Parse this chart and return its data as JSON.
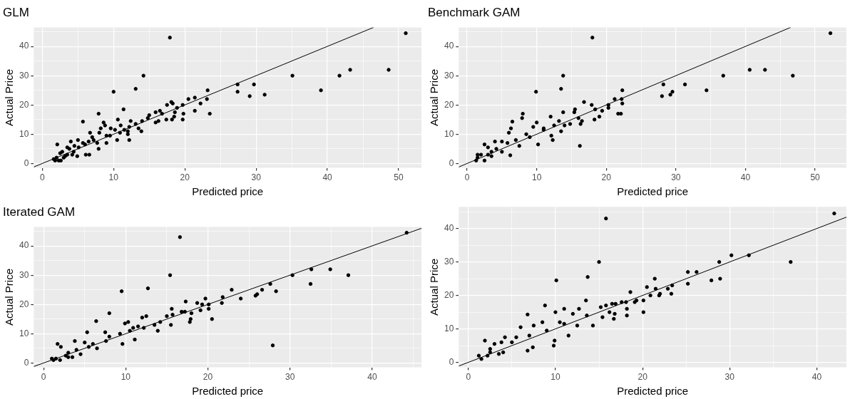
{
  "chart_data": [
    {
      "type": "scatter",
      "title": "GLM",
      "xlabel": "Predicted price",
      "ylabel": "Actual Price",
      "xlim": [
        -1.2,
        53.2
      ],
      "ylim": [
        -1.5,
        46.5
      ],
      "xticks": [
        0,
        {
          "value": 5,
          "label": null
        },
        10,
        {
          "value": 15,
          "label": null
        },
        20,
        {
          "value": 25,
          "label": null
        },
        30,
        {
          "value": 35,
          "label": null
        },
        40,
        {
          "value": 45,
          "label": null
        },
        50
      ],
      "yticks": [
        0,
        {
          "value": 5,
          "label": null
        },
        10,
        {
          "value": 15,
          "label": null
        },
        20,
        {
          "value": 25,
          "label": null
        },
        30,
        {
          "value": 35,
          "label": null
        },
        40,
        {
          "value": 45,
          "label": null
        }
      ],
      "grid": true,
      "marker": "circle",
      "series": [
        {
          "color": "#000000",
          "x": [
            17.9,
            51,
            14.2,
            10,
            13.1,
            35.1,
            39.1,
            41.7,
            43.2,
            48.6,
            27.4,
            27.4,
            29.7,
            29.1,
            31.2,
            23.2,
            23.1,
            22.2,
            21.4,
            20.5,
            21.4,
            23.5,
            19.7,
            19.7,
            19.8,
            18.1,
            18.3,
            17.5,
            18.6,
            18.9,
            17.4,
            18.2,
            18.5,
            16.5,
            16.8,
            15.9,
            15.9,
            16.3,
            15,
            14.8,
            14,
            13.9,
            13.1,
            12.4,
            12.2,
            11.4,
            11,
            10.6,
            10.9,
            10.5,
            12,
            12.2,
            9.6,
            9.5,
            9,
            8.6,
            8.8,
            7.9,
            8,
            8.2,
            7.7,
            7.9,
            7,
            6.7,
            6.5,
            6.6,
            6.1,
            5.7,
            5.7,
            5,
            5.1,
            4.9,
            4.5,
            4,
            4.4,
            3.8,
            3.5,
            3.2,
            2.8,
            2.5,
            2.1,
            2.3,
            2,
            1.6,
            1.8,
            2.6,
            3,
            4.2,
            3.5,
            6,
            7.2,
            9,
            10.2,
            11.5,
            13.5,
            12
          ],
          "values": [
            43,
            44.5,
            30,
            24.5,
            25.5,
            30,
            25,
            30,
            32,
            32,
            27,
            24.5,
            27,
            23,
            23.5,
            25,
            22,
            20.5,
            22.5,
            22,
            18,
            17,
            20,
            15,
            17,
            21,
            20.5,
            20,
            17.5,
            19,
            15,
            15,
            16,
            18,
            17,
            17.5,
            14,
            14.5,
            16.5,
            15.5,
            14.5,
            11,
            13.5,
            14.5,
            8,
            18.5,
            13,
            15,
            10.5,
            8,
            11,
            12.5,
            12,
            9.5,
            7,
            14,
            13,
            17,
            10.5,
            12,
            7,
            5,
            9,
            10.5,
            7.5,
            3,
            3,
            14.3,
            7,
            8,
            5.5,
            2.5,
            6,
            7.5,
            4,
            5,
            3,
            2.5,
            4,
            3.5,
            6.5,
            1,
            2,
            1.5,
            1,
            1,
            2,
            3,
            5.5,
            6.5,
            8,
            9.5,
            11.5,
            11.5,
            12,
            10
          ]
        },
        {
          "type": "line",
          "color": "#000000",
          "marker": "none",
          "x": [
            -1.2,
            46.5
          ],
          "values": [
            -1.2,
            46.5
          ]
        }
      ]
    },
    {
      "type": "scatter",
      "title": "Benchmark GAM",
      "xlabel": "Predicted price",
      "ylabel": "Actual Price",
      "xlim": [
        -1.2,
        54.5
      ],
      "ylim": [
        -1.5,
        46.5
      ],
      "xticks": [
        0,
        {
          "value": 5,
          "label": null
        },
        10,
        {
          "value": 15,
          "label": null
        },
        20,
        {
          "value": 25,
          "label": null
        },
        30,
        {
          "value": 35,
          "label": null
        },
        40,
        {
          "value": 45,
          "label": null
        },
        50
      ],
      "yticks": [
        0,
        {
          "value": 5,
          "label": null
        },
        10,
        {
          "value": 15,
          "label": null
        },
        20,
        {
          "value": 25,
          "label": null
        },
        30,
        {
          "value": 35,
          "label": null
        },
        40,
        {
          "value": 45,
          "label": null
        }
      ],
      "grid": true,
      "marker": "circle",
      "series": [
        {
          "color": "#000000",
          "x": [
            18,
            52.2,
            13.8,
            9.9,
            13.5,
            36.8,
            40.6,
            42.8,
            46.8,
            34.4,
            31.3,
            28.2,
            28,
            29.2,
            29.5,
            22.3,
            22.2,
            22.3,
            21.2,
            21.7,
            22.1,
            20.3,
            20.3,
            19.4,
            18.4,
            17.9,
            16.8,
            19,
            18.3,
            16.2,
            16.3,
            16.5,
            15.5,
            15.4,
            16,
            14.8,
            14,
            13.8,
            13.5,
            13.2,
            12.5,
            12.3,
            12.1,
            12,
            11,
            10.2,
            10,
            9.5,
            8,
            7.9,
            8.5,
            7.5,
            6.5,
            6.3,
            6.2,
            6,
            5.8,
            5,
            5,
            4,
            4.2,
            3.5,
            3,
            2.5,
            2.5,
            2,
            1.5,
            1.3,
            1.5,
            3,
            7,
            9,
            11,
            3.5
          ],
          "values": [
            43,
            44.5,
            30,
            24.5,
            25.5,
            30,
            32,
            32,
            30,
            25,
            27,
            27,
            23,
            23.5,
            24.5,
            25,
            22,
            20.5,
            22,
            17,
            17,
            20,
            19,
            18,
            18.5,
            20,
            21,
            16,
            15,
            6,
            13.5,
            14.5,
            18.5,
            17.5,
            15.5,
            13.5,
            13,
            17.5,
            11,
            14.5,
            13,
            8,
            9.5,
            16,
            12,
            6.5,
            14,
            12.5,
            17,
            15.5,
            10,
            6,
            14.3,
            12,
            2.8,
            10.5,
            7,
            7.5,
            4,
            7.5,
            5,
            4,
            5.5,
            6.5,
            1,
            3,
            2,
            1,
            3,
            3,
            8,
            9,
            11.5,
            2.5
          ]
        },
        {
          "type": "line",
          "color": "#000000",
          "marker": "none",
          "x": [
            -1.2,
            46.5
          ],
          "values": [
            -1.2,
            46.5
          ]
        }
      ]
    },
    {
      "type": "scatter",
      "title": "Iterated GAM",
      "xlabel": "Predicted price",
      "ylabel": "Actual Price",
      "xlim": [
        -1.2,
        46
      ],
      "ylim": [
        -1.5,
        46.5
      ],
      "xticks": [
        0,
        {
          "value": 5,
          "label": null
        },
        10,
        {
          "value": 15,
          "label": null
        },
        20,
        {
          "value": 25,
          "label": null
        },
        30,
        {
          "value": 35,
          "label": null
        },
        40,
        {
          "value": 45,
          "label": null
        }
      ],
      "yticks": [
        0,
        {
          "value": 5,
          "label": null
        },
        10,
        {
          "value": 15,
          "label": null
        },
        20,
        {
          "value": 25,
          "label": null
        },
        30,
        {
          "value": 35,
          "label": null
        },
        40,
        {
          "value": 45,
          "label": null
        }
      ],
      "grid": true,
      "marker": "circle",
      "series": [
        {
          "color": "#000000",
          "x": [
            16.6,
            44.2,
            15.4,
            9.5,
            12.7,
            30.3,
            32.6,
            34.9,
            37.1,
            32.5,
            27.6,
            28.3,
            26.6,
            26,
            25.8,
            24,
            22.9,
            21.8,
            21.7,
            20.1,
            19.7,
            20.1,
            20.5,
            19.3,
            18.7,
            19.1,
            17.3,
            18,
            17.8,
            17.9,
            17.2,
            16.8,
            15.6,
            15.7,
            15.5,
            15,
            14.2,
            13.9,
            13.5,
            12.5,
            12.2,
            12,
            11.1,
            10.9,
            10.3,
            9.9,
            9.6,
            9.3,
            8,
            7.5,
            7.6,
            6.4,
            6.5,
            5.3,
            5,
            4.5,
            3.8,
            4,
            3.5,
            3,
            2.7,
            1.7,
            2.1,
            2,
            1.5,
            1,
            1.2,
            27.9,
            6,
            8,
            10.5,
            11.5,
            3,
            5.5
          ],
          "values": [
            43,
            44.5,
            30,
            24.5,
            25.5,
            30,
            32,
            32,
            30,
            27,
            27,
            24.5,
            25,
            23.5,
            23,
            22,
            25,
            22.5,
            20.5,
            20,
            22,
            18.5,
            15,
            20,
            20.5,
            18,
            21,
            17,
            14,
            15,
            17.5,
            17.5,
            18.5,
            16.5,
            13,
            16,
            14,
            11,
            13,
            16,
            12,
            15.5,
            8,
            12,
            14,
            13.5,
            6.5,
            10,
            17,
            10.5,
            7.5,
            14.3,
            5,
            10.5,
            7,
            3,
            7.5,
            4.5,
            2,
            3.5,
            2.5,
            6.5,
            5.5,
            1,
            1.5,
            1.5,
            1,
            6,
            6.5,
            9,
            11,
            12.5,
            2,
            5.5
          ]
        },
        {
          "type": "line",
          "color": "#000000",
          "marker": "none",
          "x": [
            -1.2,
            46
          ],
          "values": [
            -1.2,
            46
          ]
        }
      ]
    },
    {
      "type": "scatter",
      "xlabel": "Predicted price",
      "ylabel": "Actual Price",
      "xlim": [
        -1.1,
        43.4
      ],
      "ylim": [
        -1.5,
        46.5
      ],
      "xticks": [
        0,
        {
          "value": 5,
          "label": null
        },
        10,
        {
          "value": 15,
          "label": null
        },
        20,
        {
          "value": 25,
          "label": null
        },
        30,
        {
          "value": 35,
          "label": null
        },
        40
      ],
      "yticks": [
        0,
        {
          "value": 5,
          "label": null
        },
        10,
        {
          "value": 15,
          "label": null
        },
        20,
        {
          "value": 25,
          "label": null
        },
        30,
        {
          "value": 35,
          "label": null
        },
        40,
        {
          "value": 45,
          "label": null
        }
      ],
      "grid": true,
      "marker": "circle",
      "series": [
        {
          "color": "#000000",
          "x": [
            15.8,
            42,
            15,
            10.1,
            13.7,
            30.2,
            32.2,
            28.8,
            37,
            27.9,
            28.9,
            26.2,
            25.2,
            25.2,
            23.4,
            23.3,
            22.9,
            21.9,
            22,
            21.4,
            21.5,
            20.9,
            20.5,
            20.1,
            20.1,
            19.3,
            19.1,
            18.6,
            18.1,
            18.2,
            18.2,
            17.6,
            16.9,
            16.5,
            16.8,
            16.7,
            16.2,
            15.8,
            15.4,
            15.2,
            14.3,
            13.5,
            13.6,
            12.7,
            12.5,
            12,
            11.5,
            11,
            10.5,
            10,
            9.9,
            9.8,
            8.8,
            8.5,
            7.5,
            7.4,
            6.8,
            6.8,
            6,
            5.5,
            5,
            4.2,
            3.8,
            4,
            3,
            2.5,
            1.9,
            2.2,
            1.5,
            1.2,
            2.5,
            7,
            9,
            11,
            3.5
          ],
          "values": [
            43,
            44.5,
            30,
            24.5,
            25.5,
            32,
            32,
            30,
            30,
            24.5,
            25,
            27,
            27,
            23.5,
            23,
            20.5,
            22,
            20,
            20.5,
            25,
            22,
            20,
            22.5,
            18.5,
            15,
            18.5,
            18,
            21,
            18,
            16,
            14,
            18,
            17.5,
            17.5,
            14.5,
            13,
            15,
            17,
            13.5,
            16.5,
            11,
            18.5,
            14,
            16,
            11,
            14.5,
            8,
            16,
            12,
            15,
            6.5,
            5,
            17,
            12,
            11,
            4.5,
            14.3,
            3.5,
            10.5,
            7.5,
            6,
            7.5,
            6,
            3,
            5.5,
            4,
            6.5,
            2,
            1,
            2,
            3,
            8,
            9.5,
            11.5,
            2.5
          ]
        },
        {
          "type": "line",
          "color": "#000000",
          "marker": "none",
          "x": [
            -1.1,
            43.4
          ],
          "values": [
            -1.1,
            43.4
          ]
        }
      ]
    }
  ]
}
